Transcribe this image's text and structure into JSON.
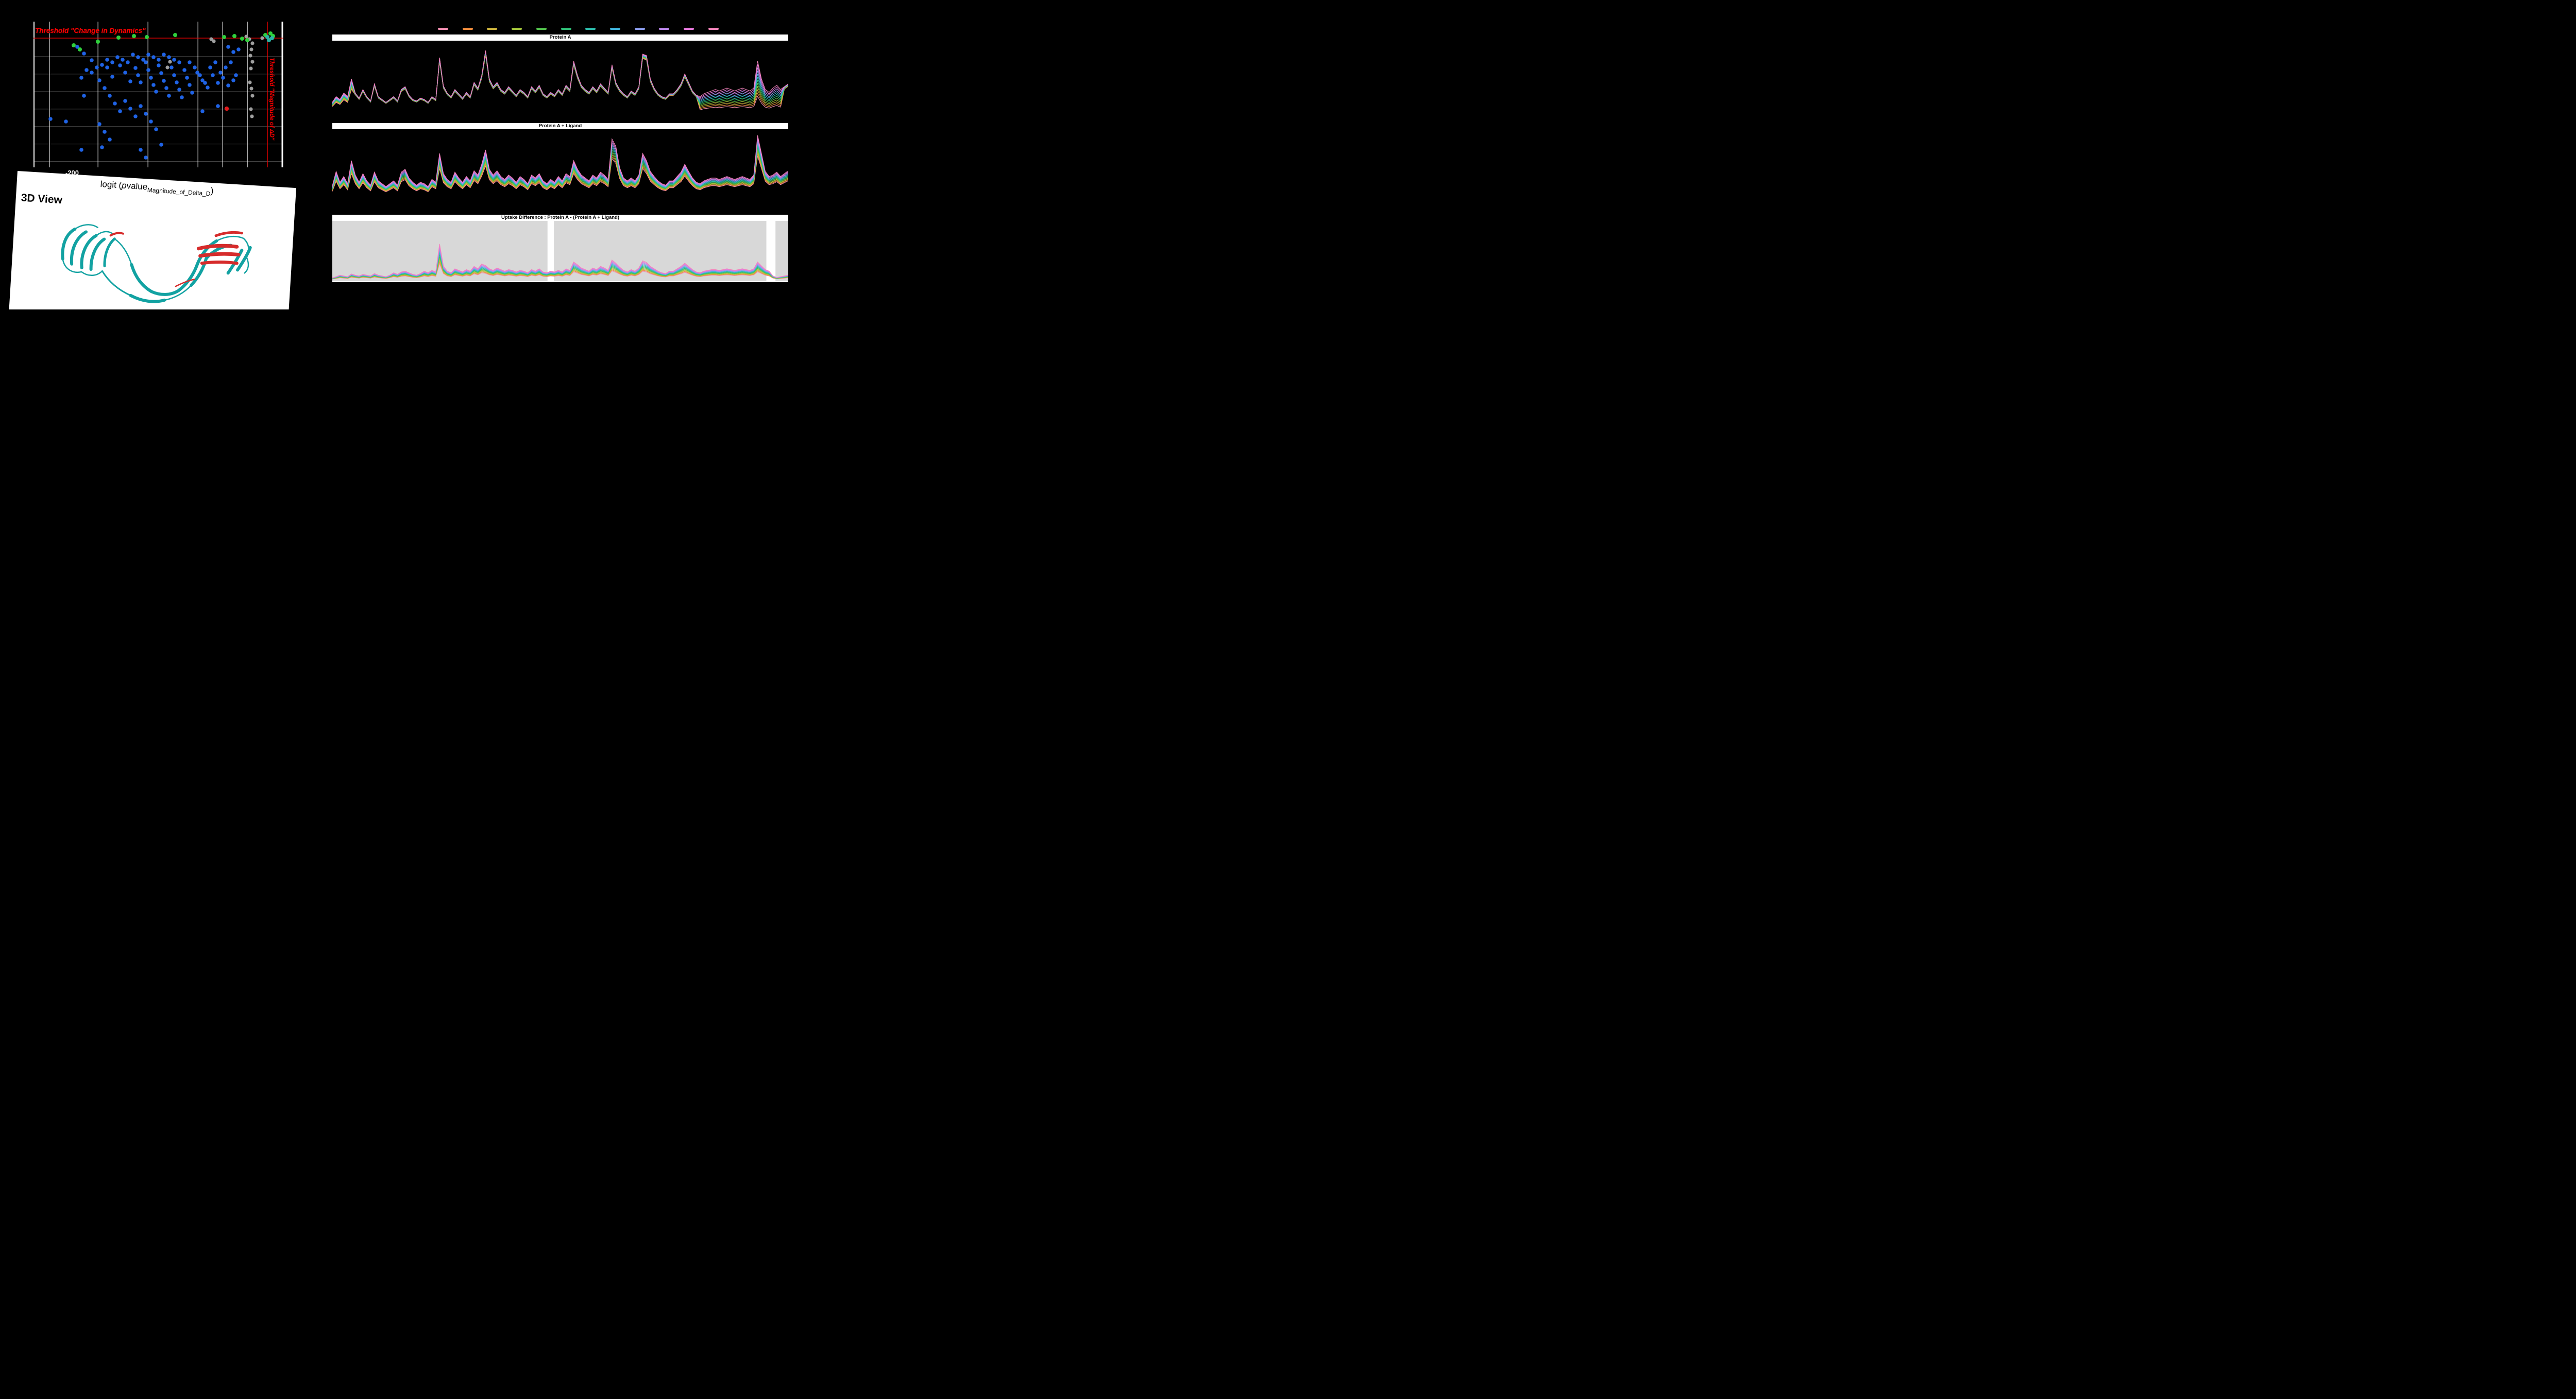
{
  "page": {
    "background": "#000000"
  },
  "timepoint_colors": [
    "#f48fb1",
    "#f08c3c",
    "#cdb33d",
    "#a3c53a",
    "#52c24c",
    "#2fbf77",
    "#2cbcab",
    "#3fb3dc",
    "#8a9cec",
    "#bb86ea",
    "#e678dc",
    "#f584bb"
  ],
  "view3d": {
    "title": "3D View",
    "colors": {
      "ribbon": "#12a2a2",
      "highlight": "#d62b2b"
    }
  },
  "chart_data": [
    {
      "id": "volcano-plot",
      "type": "scatter",
      "xlabel_parts": {
        "prefix": "logit (",
        "p": "p",
        "main": "value",
        "sub": "Magnitude_of_Delta_D",
        "suffix": ")"
      },
      "x_tick": {
        "label": "-200",
        "frac": 0.161
      },
      "thresholds": {
        "color": "#ff0000",
        "h_frac": 0.113,
        "h_label": "Threshold \"Change in Dynamics\"",
        "v_frac": 0.936,
        "v_label": "Threshold \"Magnitude of ΔD\""
      },
      "grid": {
        "v_color": "#ffffff",
        "h_color": "#5a5a5a",
        "v_fracs": [
          0.064,
          0.258,
          0.458,
          0.658,
          0.757,
          0.856
        ],
        "h_fracs": [
          0.24,
          0.36,
          0.48,
          0.6,
          0.72,
          0.84,
          0.96
        ]
      },
      "series": [
        {
          "name": "blue-points",
          "color": "#1f63e6",
          "r": 3.8,
          "points": [
            [
              85,
              49
            ],
            [
              98,
              62
            ],
            [
              113,
              75
            ],
            [
              143,
              89
            ],
            [
              153,
              107
            ],
            [
              168,
              85
            ],
            [
              178,
              99
            ],
            [
              188,
              116
            ],
            [
              198,
              90
            ],
            [
              203,
              104
            ],
            [
              208,
              118
            ],
            [
              218,
              79
            ],
            [
              223,
              94
            ],
            [
              228,
              109
            ],
            [
              233,
              123
            ],
            [
              238,
              136
            ],
            [
              243,
              85
            ],
            [
              248,
              100
            ],
            [
              253,
              115
            ],
            [
              258,
              129
            ],
            [
              263,
              144
            ],
            [
              268,
              89
            ],
            [
              273,
              104
            ],
            [
              278,
              118
            ],
            [
              283,
              132
            ],
            [
              288,
              147
            ],
            [
              293,
              94
            ],
            [
              298,
              109
            ],
            [
              303,
              123
            ],
            [
              308,
              138
            ],
            [
              318,
              99
            ],
            [
              328,
              114
            ],
            [
              338,
              128
            ],
            [
              348,
              104
            ],
            [
              358,
              119
            ],
            [
              368,
              109
            ],
            [
              378,
              124
            ],
            [
              388,
              114
            ],
            [
              343,
              89
            ],
            [
              353,
              79
            ],
            [
              363,
              99
            ],
            [
              373,
              89
            ],
            [
              383,
              79
            ],
            [
              393,
              104
            ],
            [
              303,
              79
            ],
            [
              313,
              89
            ],
            [
              323,
              104
            ],
            [
              333,
              119
            ],
            [
              283,
              79
            ],
            [
              273,
              74
            ],
            [
              263,
              69
            ],
            [
              253,
              64
            ],
            [
              243,
              74
            ],
            [
              233,
              69
            ],
            [
              223,
              64
            ],
            [
              213,
              74
            ],
            [
              203,
              69
            ],
            [
              193,
              64
            ],
            [
              183,
              79
            ],
            [
              173,
              74
            ],
            [
              163,
              69
            ],
            [
              153,
              79
            ],
            [
              143,
              74
            ],
            [
              133,
              84
            ],
            [
              123,
              89
            ],
            [
              113,
              99
            ],
            [
              103,
              94
            ],
            [
              93,
              109
            ],
            [
              128,
              114
            ],
            [
              138,
              129
            ],
            [
              148,
              144
            ],
            [
              158,
              159
            ],
            [
              168,
              174
            ],
            [
              178,
              154
            ],
            [
              188,
              169
            ],
            [
              198,
              184
            ],
            [
              208,
              164
            ],
            [
              218,
              179
            ],
            [
              228,
              194
            ],
            [
              238,
              209
            ],
            [
              128,
              199
            ],
            [
              138,
              214
            ],
            [
              148,
              229
            ],
            [
              133,
              244
            ],
            [
              98,
              144
            ],
            [
              63,
              194
            ],
            [
              33,
              189
            ],
            [
              93,
              249
            ],
            [
              208,
              249
            ],
            [
              218,
              264
            ],
            [
              248,
              239
            ],
            [
              328,
              174
            ],
            [
              358,
              164
            ],
            [
              388,
              59
            ],
            [
              398,
              54
            ],
            [
              378,
              49
            ]
          ]
        },
        {
          "name": "gray-points",
          "color": "#9f9f9f",
          "r": 3.6,
          "points": [
            [
              413,
              29
            ],
            [
              419,
              34
            ],
            [
              425,
              42
            ],
            [
              423,
              54
            ],
            [
              421,
              66
            ],
            [
              425,
              78
            ],
            [
              422,
              91
            ],
            [
              420,
              118
            ],
            [
              423,
              130
            ],
            [
              425,
              144
            ],
            [
              422,
              170
            ],
            [
              424,
              184
            ],
            [
              345,
              34
            ],
            [
              350,
              38
            ],
            [
              265,
              78
            ],
            [
              260,
              89
            ],
            [
              444,
              32
            ]
          ]
        },
        {
          "name": "green-points",
          "color": "#2fcf3c",
          "r": 4.0,
          "points": [
            [
              78,
              46
            ],
            [
              90,
              54
            ],
            [
              125,
              39
            ],
            [
              165,
              31
            ],
            [
              195,
              28
            ],
            [
              220,
              30
            ],
            [
              275,
              26
            ],
            [
              370,
              30
            ],
            [
              390,
              28
            ],
            [
              405,
              33
            ],
            [
              415,
              36
            ],
            [
              450,
              26
            ],
            [
              460,
              23
            ],
            [
              465,
              28
            ]
          ]
        },
        {
          "name": "teal-points",
          "color": "#2ab3a3",
          "r": 4.0,
          "points": [
            [
              454,
              30
            ],
            [
              463,
              32
            ],
            [
              457,
              36
            ]
          ]
        },
        {
          "name": "red-points",
          "color": "#e31a1c",
          "r": 4.2,
          "points": [
            [
              375,
              169
            ]
          ]
        }
      ]
    },
    {
      "id": "protein-a",
      "type": "line",
      "title": "Protein A",
      "value_scale": 0.95,
      "spread_base": 0.07,
      "spread_regions": [
        {
          "from": 0.0,
          "to": 0.045,
          "strength": 0.2
        },
        {
          "from": 0.8,
          "to": 0.985,
          "strength": 0.55
        }
      ],
      "profile": [
        22,
        30,
        26,
        35,
        30,
        55,
        35,
        28,
        40,
        30,
        24,
        48,
        30,
        26,
        22,
        26,
        30,
        24,
        40,
        44,
        32,
        26,
        24,
        28,
        26,
        22,
        30,
        26,
        85,
        45,
        35,
        30,
        40,
        34,
        28,
        36,
        30,
        50,
        42,
        60,
        95,
        55,
        44,
        50,
        40,
        36,
        44,
        38,
        32,
        40,
        36,
        30,
        44,
        38,
        46,
        34,
        30,
        36,
        32,
        40,
        34,
        46,
        40,
        80,
        60,
        46,
        40,
        36,
        44,
        38,
        48,
        42,
        36,
        75,
        50,
        40,
        34,
        30,
        38,
        34,
        44,
        90,
        88,
        55,
        42,
        34,
        30,
        28,
        34,
        34,
        40,
        48,
        62,
        50,
        38,
        32,
        30,
        34,
        36,
        38,
        40,
        38,
        40,
        42,
        40,
        38,
        40,
        42,
        40,
        38,
        42,
        80,
        55,
        40,
        36,
        42,
        46,
        40,
        44,
        48
      ]
    },
    {
      "id": "protein-a-ligand",
      "type": "line",
      "title": "Protein A + Ligand",
      "value_scale": 1.0,
      "spread_base": 0.3,
      "spread_regions": [],
      "profile": [
        25,
        45,
        30,
        38,
        28,
        60,
        40,
        30,
        42,
        32,
        26,
        44,
        32,
        28,
        24,
        28,
        32,
        26,
        44,
        48,
        36,
        30,
        26,
        30,
        28,
        24,
        34,
        30,
        70,
        42,
        34,
        30,
        44,
        36,
        30,
        38,
        32,
        46,
        40,
        55,
        75,
        48,
        40,
        46,
        38,
        34,
        40,
        36,
        30,
        38,
        34,
        28,
        40,
        36,
        42,
        32,
        28,
        34,
        30,
        38,
        32,
        42,
        38,
        60,
        48,
        40,
        36,
        32,
        40,
        36,
        44,
        40,
        34,
        90,
        80,
        50,
        36,
        32,
        36,
        32,
        40,
        70,
        60,
        45,
        38,
        32,
        28,
        26,
        32,
        32,
        38,
        44,
        55,
        45,
        36,
        30,
        28,
        32,
        34,
        36,
        36,
        34,
        36,
        38,
        36,
        34,
        36,
        38,
        36,
        34,
        40,
        95,
        70,
        45,
        38,
        40,
        44,
        38,
        42,
        46
      ]
    },
    {
      "id": "uptake-difference",
      "type": "line",
      "title": "Uptake Difference : Protein A - (Protein A + Ligand)",
      "value_scale": 0.7,
      "spread_base": 0.55,
      "spread_regions": [],
      "background_regions": [
        {
          "from": 0.0,
          "to": 0.472,
          "color": "#d8d8d8"
        },
        {
          "from": 0.486,
          "to": 0.952,
          "color": "#d8d8d8"
        },
        {
          "from": 0.972,
          "to": 1.0,
          "color": "#d8d8d8"
        }
      ],
      "profile": [
        5,
        8,
        12,
        10,
        8,
        15,
        12,
        10,
        14,
        12,
        10,
        16,
        12,
        10,
        8,
        12,
        18,
        14,
        20,
        22,
        18,
        14,
        12,
        16,
        22,
        18,
        24,
        20,
        90,
        35,
        22,
        18,
        28,
        24,
        20,
        26,
        22,
        34,
        28,
        40,
        36,
        28,
        24,
        30,
        26,
        22,
        26,
        24,
        20,
        24,
        22,
        18,
        26,
        22,
        28,
        20,
        18,
        22,
        20,
        24,
        20,
        28,
        24,
        45,
        38,
        30,
        26,
        22,
        30,
        26,
        34,
        30,
        24,
        50,
        42,
        32,
        24,
        20,
        26,
        22,
        30,
        48,
        44,
        34,
        28,
        22,
        18,
        16,
        22,
        22,
        28,
        34,
        42,
        34,
        26,
        20,
        18,
        22,
        24,
        26,
        26,
        24,
        26,
        28,
        26,
        24,
        26,
        28,
        26,
        24,
        28,
        45,
        35,
        26,
        22,
        10,
        6,
        8,
        10,
        12
      ]
    }
  ]
}
